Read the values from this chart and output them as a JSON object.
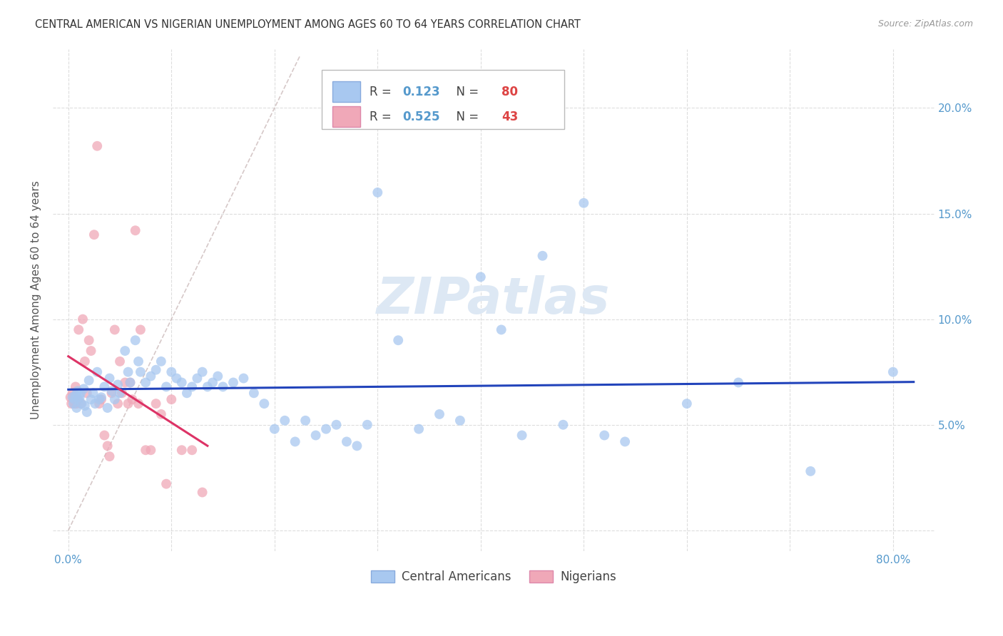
{
  "title": "CENTRAL AMERICAN VS NIGERIAN UNEMPLOYMENT AMONG AGES 60 TO 64 YEARS CORRELATION CHART",
  "source": "Source: ZipAtlas.com",
  "ylabel": "Unemployment Among Ages 60 to 64 years",
  "watermark": "ZIPatlas",
  "blue_scatter_color": "#a8c8f0",
  "pink_scatter_color": "#f0a8b8",
  "blue_line_color": "#2244bb",
  "pink_line_color": "#dd3366",
  "ref_line_color": "#ccbbbb",
  "blue_r": "0.123",
  "blue_n": "80",
  "pink_r": "0.525",
  "pink_n": "43",
  "x_tick_pos": [
    0.0,
    0.1,
    0.2,
    0.3,
    0.4,
    0.5,
    0.6,
    0.7,
    0.8
  ],
  "x_tick_labels": [
    "0.0%",
    "",
    "",
    "",
    "",
    "",
    "",
    "",
    "80.0%"
  ],
  "y_tick_pos": [
    0.0,
    0.05,
    0.1,
    0.15,
    0.2
  ],
  "y_tick_labels_right": [
    "",
    "5.0%",
    "10.0%",
    "15.0%",
    "20.0%"
  ],
  "xlim": [
    -0.015,
    0.84
  ],
  "ylim": [
    -0.01,
    0.228
  ],
  "blue_points_x": [
    0.004,
    0.005,
    0.006,
    0.007,
    0.008,
    0.009,
    0.01,
    0.011,
    0.012,
    0.013,
    0.015,
    0.016,
    0.018,
    0.02,
    0.022,
    0.024,
    0.026,
    0.028,
    0.03,
    0.032,
    0.035,
    0.038,
    0.04,
    0.042,
    0.045,
    0.048,
    0.05,
    0.055,
    0.058,
    0.06,
    0.065,
    0.068,
    0.07,
    0.075,
    0.08,
    0.085,
    0.09,
    0.095,
    0.1,
    0.105,
    0.11,
    0.115,
    0.12,
    0.125,
    0.13,
    0.135,
    0.14,
    0.145,
    0.15,
    0.16,
    0.17,
    0.18,
    0.19,
    0.2,
    0.21,
    0.22,
    0.23,
    0.24,
    0.25,
    0.26,
    0.27,
    0.28,
    0.29,
    0.3,
    0.32,
    0.34,
    0.36,
    0.38,
    0.4,
    0.42,
    0.44,
    0.46,
    0.48,
    0.5,
    0.52,
    0.54,
    0.6,
    0.65,
    0.72,
    0.8
  ],
  "blue_points_y": [
    0.063,
    0.06,
    0.062,
    0.064,
    0.058,
    0.066,
    0.062,
    0.063,
    0.065,
    0.06,
    0.067,
    0.059,
    0.056,
    0.071,
    0.062,
    0.065,
    0.06,
    0.075,
    0.062,
    0.063,
    0.068,
    0.058,
    0.072,
    0.066,
    0.062,
    0.069,
    0.065,
    0.085,
    0.075,
    0.07,
    0.09,
    0.08,
    0.075,
    0.07,
    0.073,
    0.076,
    0.08,
    0.068,
    0.075,
    0.072,
    0.07,
    0.065,
    0.068,
    0.072,
    0.075,
    0.068,
    0.07,
    0.073,
    0.068,
    0.07,
    0.072,
    0.065,
    0.06,
    0.048,
    0.052,
    0.042,
    0.052,
    0.045,
    0.048,
    0.05,
    0.042,
    0.04,
    0.05,
    0.16,
    0.09,
    0.048,
    0.055,
    0.052,
    0.12,
    0.095,
    0.045,
    0.13,
    0.05,
    0.155,
    0.045,
    0.042,
    0.06,
    0.07,
    0.028,
    0.075
  ],
  "pink_points_x": [
    0.002,
    0.003,
    0.004,
    0.005,
    0.006,
    0.007,
    0.008,
    0.009,
    0.01,
    0.012,
    0.014,
    0.016,
    0.018,
    0.02,
    0.022,
    0.025,
    0.028,
    0.03,
    0.032,
    0.035,
    0.038,
    0.04,
    0.042,
    0.045,
    0.048,
    0.05,
    0.052,
    0.055,
    0.058,
    0.06,
    0.062,
    0.065,
    0.068,
    0.07,
    0.075,
    0.08,
    0.085,
    0.09,
    0.095,
    0.1,
    0.11,
    0.12,
    0.13
  ],
  "pink_points_y": [
    0.063,
    0.06,
    0.065,
    0.063,
    0.06,
    0.068,
    0.06,
    0.062,
    0.095,
    0.06,
    0.1,
    0.08,
    0.065,
    0.09,
    0.085,
    0.14,
    0.182,
    0.06,
    0.062,
    0.045,
    0.04,
    0.035,
    0.065,
    0.095,
    0.06,
    0.08,
    0.065,
    0.07,
    0.06,
    0.07,
    0.062,
    0.142,
    0.06,
    0.095,
    0.038,
    0.038,
    0.06,
    0.055,
    0.022,
    0.062,
    0.038,
    0.038,
    0.018
  ]
}
